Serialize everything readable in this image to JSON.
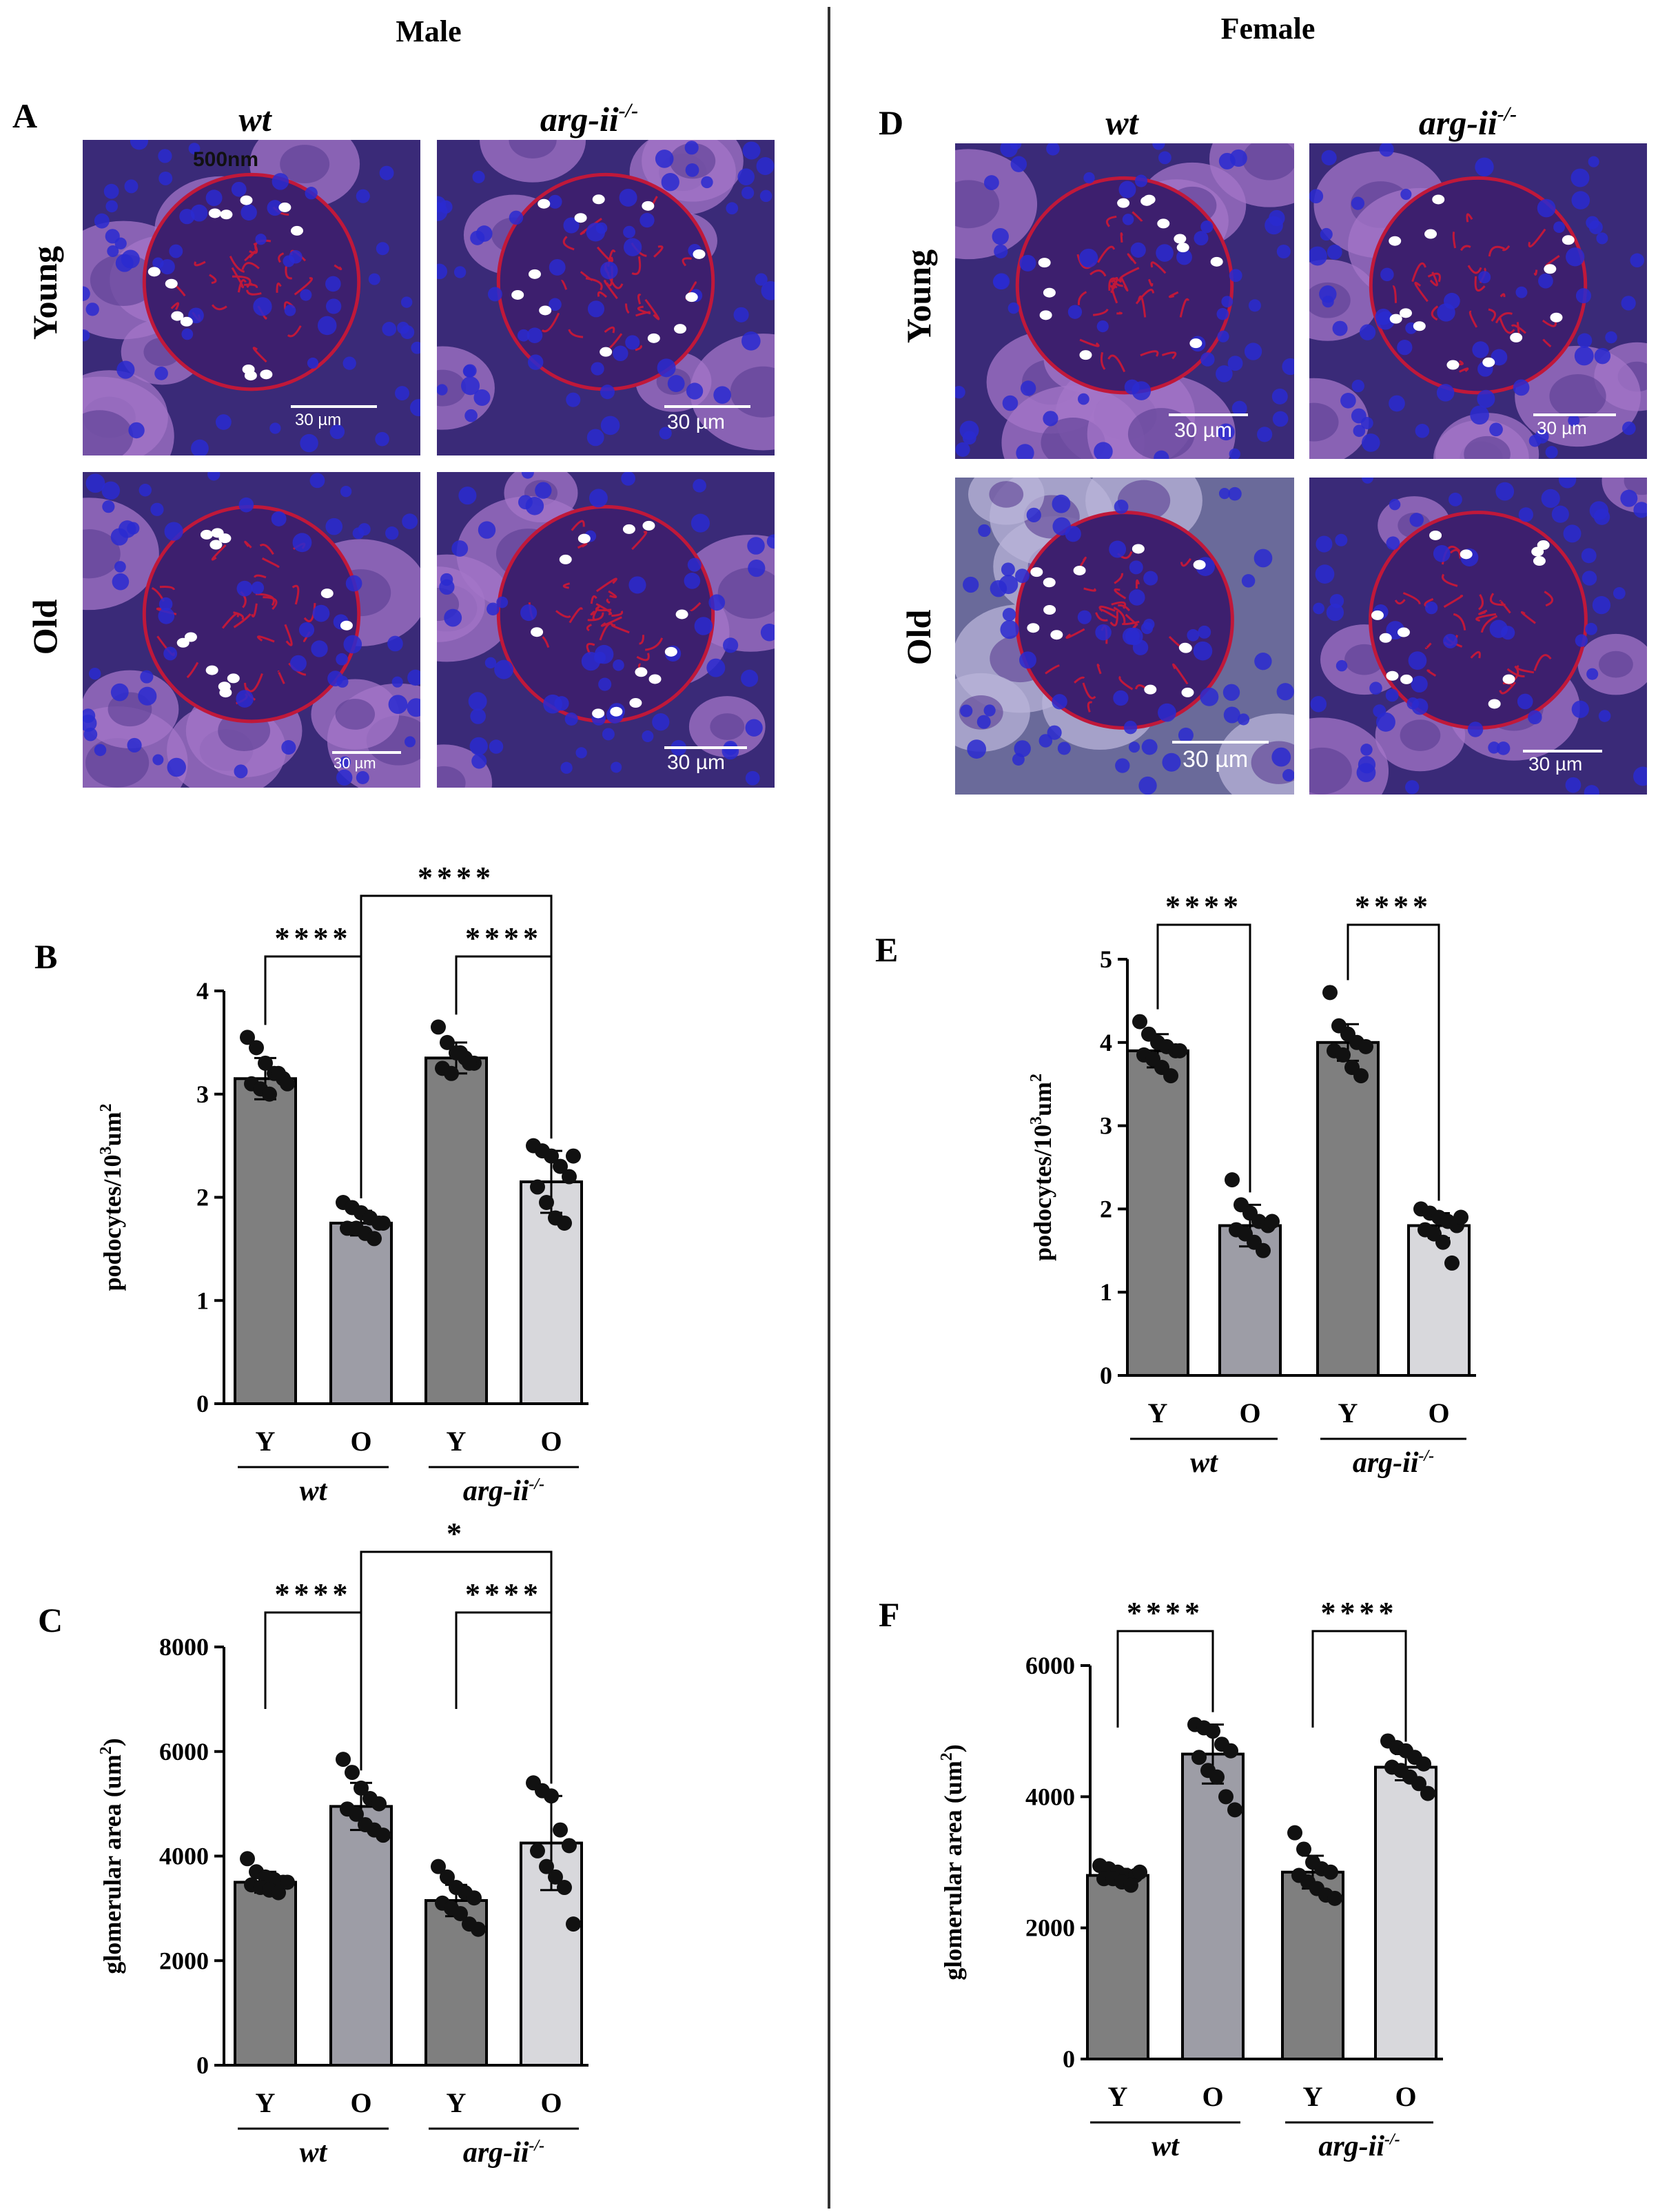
{
  "headers": {
    "male": "Male",
    "female": "Female"
  },
  "panels": {
    "A": {
      "letter": "A",
      "col_labels": [
        "wt",
        "arg-ii"
      ],
      "col_label_sup": "-/-",
      "row_labels": [
        "Young",
        "Old"
      ],
      "scalebars": [
        "30 µm",
        "30 µm",
        "30 µm",
        "30 µm"
      ],
      "stray_label": "500nm"
    },
    "D": {
      "letter": "D",
      "col_labels": [
        "wt",
        "arg-ii"
      ],
      "col_label_sup": "-/-",
      "row_labels": [
        "Young",
        "Old"
      ],
      "scalebars": [
        "30 µm",
        "30 µm",
        "30 µm",
        "30 µm"
      ]
    }
  },
  "colors": {
    "dark_bar": "#7f7f7f",
    "mid_bar": "#9d9da6",
    "light_bar": "#d8d8dc",
    "micro_bg": "#3a2a78",
    "nuclei": "#2a2ad0",
    "podocyte_red": "#c0183a"
  },
  "chart_data": [
    {
      "id": "B",
      "letter": "B",
      "type": "bar",
      "ylabel": "podocytes/10",
      "ylabel_sup": "3",
      "ylabel_unit": "um",
      "ylabel_unit_sup": "2",
      "ylim": [
        0,
        4
      ],
      "yticks": [
        0,
        1,
        2,
        3,
        4
      ],
      "categories": [
        "Y",
        "O",
        "Y",
        "O"
      ],
      "groups": [
        {
          "label": "wt",
          "sup": ""
        },
        {
          "label": "arg-ii",
          "sup": "-/-"
        }
      ],
      "values": [
        3.15,
        1.75,
        3.35,
        2.15
      ],
      "errors": [
        0.2,
        0.12,
        0.15,
        0.3
      ],
      "points": [
        [
          3.55,
          3.45,
          3.3,
          3.2,
          3.15,
          3.1,
          3.05,
          3.0,
          3.2,
          3.1
        ],
        [
          1.95,
          1.9,
          1.85,
          1.8,
          1.75,
          1.7,
          1.7,
          1.65,
          1.6,
          1.75
        ],
        [
          3.65,
          3.5,
          3.4,
          3.35,
          3.3,
          3.25,
          3.2,
          3.4,
          3.3
        ],
        [
          2.5,
          2.45,
          2.4,
          2.3,
          2.2,
          2.1,
          1.95,
          1.8,
          1.75,
          2.4
        ]
      ],
      "significance": [
        {
          "from": 0,
          "to": 1,
          "label": "****"
        },
        {
          "from": 2,
          "to": 3,
          "label": "****"
        },
        {
          "from": 1,
          "to": 3,
          "label": "****"
        }
      ]
    },
    {
      "id": "C",
      "letter": "C",
      "type": "bar",
      "ylabel": "glomerular  area (um",
      "ylabel_sup": "2",
      "ylabel_unit": ")",
      "ylabel_unit_sup": "",
      "ylim": [
        0,
        8000
      ],
      "yticks": [
        0,
        2000,
        4000,
        6000,
        8000
      ],
      "categories": [
        "Y",
        "O",
        "Y",
        "O"
      ],
      "groups": [
        {
          "label": "wt",
          "sup": ""
        },
        {
          "label": "arg-ii",
          "sup": "-/-"
        }
      ],
      "values": [
        3500,
        4950,
        3150,
        4250
      ],
      "errors": [
        200,
        450,
        300,
        900
      ],
      "points": [
        [
          3950,
          3700,
          3600,
          3550,
          3500,
          3450,
          3400,
          3350,
          3300,
          3500
        ],
        [
          5850,
          5600,
          5300,
          5100,
          5000,
          4900,
          4800,
          4600,
          4500,
          4400
        ],
        [
          3800,
          3600,
          3400,
          3300,
          3200,
          3100,
          3000,
          2900,
          2700,
          2600
        ],
        [
          5400,
          5250,
          5150,
          4500,
          4200,
          4100,
          3800,
          3600,
          3400,
          2700
        ]
      ],
      "significance": [
        {
          "from": 0,
          "to": 1,
          "label": "****"
        },
        {
          "from": 2,
          "to": 3,
          "label": "****"
        },
        {
          "from": 1,
          "to": 3,
          "label": "*"
        }
      ]
    },
    {
      "id": "E",
      "letter": "E",
      "type": "bar",
      "ylabel": "podocytes/10",
      "ylabel_sup": "3",
      "ylabel_unit": "um",
      "ylabel_unit_sup": "2",
      "ylim": [
        0,
        5
      ],
      "yticks": [
        0,
        1,
        2,
        3,
        4,
        5
      ],
      "categories": [
        "Y",
        "O",
        "Y",
        "O"
      ],
      "groups": [
        {
          "label": "wt",
          "sup": ""
        },
        {
          "label": "arg-ii",
          "sup": "-/-"
        }
      ],
      "values": [
        3.9,
        1.8,
        4.0,
        1.8
      ],
      "errors": [
        0.2,
        0.25,
        0.22,
        0.15
      ],
      "points": [
        [
          4.25,
          4.1,
          4.0,
          3.95,
          3.9,
          3.85,
          3.8,
          3.7,
          3.6,
          3.9
        ],
        [
          2.35,
          2.05,
          1.95,
          1.85,
          1.8,
          1.75,
          1.7,
          1.6,
          1.5,
          1.85
        ],
        [
          4.6,
          4.2,
          4.1,
          4.0,
          3.95,
          3.9,
          3.85,
          3.7,
          3.6
        ],
        [
          2.0,
          1.95,
          1.9,
          1.85,
          1.8,
          1.75,
          1.7,
          1.6,
          1.35,
          1.9
        ]
      ],
      "significance": [
        {
          "from": 0,
          "to": 1,
          "label": "****"
        },
        {
          "from": 2,
          "to": 3,
          "label": "****"
        }
      ]
    },
    {
      "id": "F",
      "letter": "F",
      "type": "bar",
      "ylabel": "glomerular  area (um",
      "ylabel_sup": "2",
      "ylabel_unit": ")",
      "ylabel_unit_sup": "",
      "ylim": [
        0,
        6000
      ],
      "yticks": [
        0,
        2000,
        4000,
        6000
      ],
      "categories": [
        "Y",
        "O",
        "Y",
        "O"
      ],
      "groups": [
        {
          "label": "wt",
          "sup": ""
        },
        {
          "label": "arg-ii",
          "sup": "-/-"
        }
      ],
      "values": [
        2800,
        4650,
        2850,
        4450
      ],
      "errors": [
        100,
        450,
        250,
        200
      ],
      "points": [
        [
          2950,
          2900,
          2850,
          2800,
          2800,
          2750,
          2750,
          2700,
          2650,
          2850
        ],
        [
          5100,
          5050,
          5000,
          4800,
          4700,
          4600,
          4400,
          4300,
          4000,
          3800
        ],
        [
          3450,
          3200,
          3000,
          2900,
          2850,
          2800,
          2700,
          2600,
          2500,
          2450
        ],
        [
          4850,
          4750,
          4700,
          4600,
          4500,
          4450,
          4400,
          4300,
          4200,
          4050
        ]
      ],
      "significance": [
        {
          "from": 0,
          "to": 1,
          "label": "****"
        },
        {
          "from": 2,
          "to": 3,
          "label": "****"
        }
      ]
    }
  ]
}
